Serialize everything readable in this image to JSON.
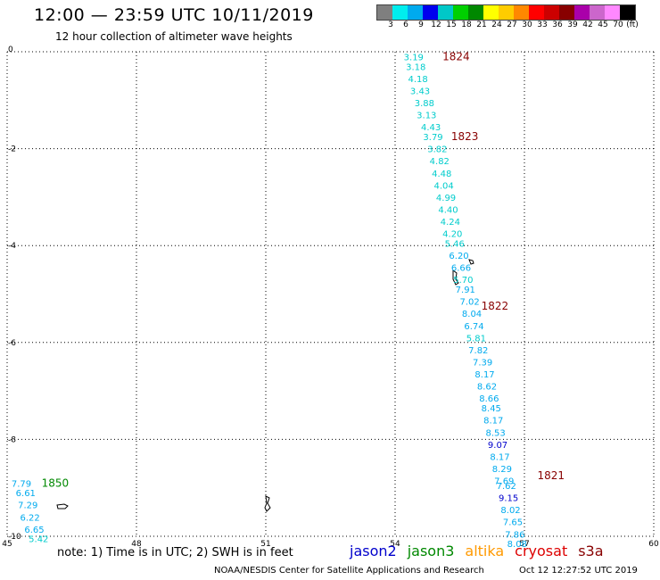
{
  "header": {
    "title": "12:00 — 23:59 UTC 10/11/2019",
    "subtitle": "12 hour collection of altimeter wave heights"
  },
  "legend": {
    "colors": [
      "#7f7f7f",
      "#00eeee",
      "#00aaee",
      "#0000ee",
      "#00c8c8",
      "#00d000",
      "#008800",
      "#ffff00",
      "#ffcc00",
      "#ff8800",
      "#ff0000",
      "#cc0000",
      "#880000",
      "#aa00aa",
      "#cc66cc",
      "#ff88ff",
      "#000000"
    ],
    "labels": [
      "3",
      "6",
      "9",
      "12",
      "15",
      "18",
      "21",
      "24",
      "27",
      "30",
      "33",
      "36",
      "39",
      "42",
      "45",
      "70",
      "(ft)"
    ]
  },
  "note": "note: 1) Time is in UTC; 2) SWH is in feet",
  "missions": [
    {
      "name": "jason2",
      "color": "#0000cc"
    },
    {
      "name": "jason3",
      "color": "#008800"
    },
    {
      "name": "altika",
      "color": "#ff9900"
    },
    {
      "name": "cryosat",
      "color": "#dd0000"
    },
    {
      "name": "s3a",
      "color": "#880000"
    }
  ],
  "footer": {
    "credit": "NOAA/NESDIS Center for Satellite Applications and Research",
    "timestamp": "Oct 12 12:27:52 UTC 2019"
  },
  "chart_data": {
    "type": "scatter",
    "xlim": [
      45,
      60
    ],
    "ylim": [
      -10,
      0
    ],
    "x_ticks": [
      "45",
      "48",
      "51",
      "54",
      "57",
      "60"
    ],
    "y_ticks": [
      "0",
      "-2",
      "-4",
      "-6",
      "-8",
      "-10"
    ],
    "grid": true,
    "time_labels": [
      {
        "label": "1824",
        "x": 55.1,
        "y": -0.1,
        "color": "#880000"
      },
      {
        "label": "1823",
        "x": 55.3,
        "y": -1.75,
        "color": "#880000"
      },
      {
        "label": "1822",
        "x": 56.0,
        "y": -5.25,
        "color": "#880000"
      },
      {
        "label": "1821",
        "x": 57.3,
        "y": -8.75,
        "color": "#880000"
      },
      {
        "label": "1850",
        "x": 45.8,
        "y": -8.9,
        "color": "#008800"
      }
    ],
    "points": [
      {
        "v": "3.19",
        "x": 54.2,
        "y": -0.1,
        "color": "#00cccc"
      },
      {
        "v": "3.18",
        "x": 54.25,
        "y": -0.3,
        "color": "#00cccc"
      },
      {
        "v": "4.18",
        "x": 54.3,
        "y": -0.55,
        "color": "#00cccc"
      },
      {
        "v": "3.43",
        "x": 54.35,
        "y": -0.8,
        "color": "#00cccc"
      },
      {
        "v": "3.88",
        "x": 54.45,
        "y": -1.05,
        "color": "#00cccc"
      },
      {
        "v": "3.13",
        "x": 54.5,
        "y": -1.3,
        "color": "#00cccc"
      },
      {
        "v": "4.43",
        "x": 54.6,
        "y": -1.55,
        "color": "#00cccc"
      },
      {
        "v": "3.79",
        "x": 54.65,
        "y": -1.75,
        "color": "#00cccc"
      },
      {
        "v": "3.82",
        "x": 54.75,
        "y": -2.0,
        "color": "#00cccc"
      },
      {
        "v": "4.82",
        "x": 54.8,
        "y": -2.25,
        "color": "#00cccc"
      },
      {
        "v": "4.48",
        "x": 54.85,
        "y": -2.5,
        "color": "#00cccc"
      },
      {
        "v": "4.04",
        "x": 54.9,
        "y": -2.75,
        "color": "#00cccc"
      },
      {
        "v": "4.99",
        "x": 54.95,
        "y": -3.0,
        "color": "#00cccc"
      },
      {
        "v": "4.40",
        "x": 55.0,
        "y": -3.25,
        "color": "#00cccc"
      },
      {
        "v": "4.24",
        "x": 55.05,
        "y": -3.5,
        "color": "#00cccc"
      },
      {
        "v": "4.20",
        "x": 55.1,
        "y": -3.75,
        "color": "#00cccc"
      },
      {
        "v": "5.46",
        "x": 55.15,
        "y": -3.95,
        "color": "#00cccc"
      },
      {
        "v": "6.20",
        "x": 55.25,
        "y": -4.2,
        "color": "#00aaee"
      },
      {
        "v": "6.66",
        "x": 55.3,
        "y": -4.45,
        "color": "#00aaee"
      },
      {
        "v": "5.70",
        "x": 55.35,
        "y": -4.7,
        "color": "#00cccc"
      },
      {
        "v": "7.91",
        "x": 55.4,
        "y": -4.9,
        "color": "#00aaee"
      },
      {
        "v": "7.02",
        "x": 55.5,
        "y": -5.15,
        "color": "#00aaee"
      },
      {
        "v": "8.04",
        "x": 55.55,
        "y": -5.4,
        "color": "#00aaee"
      },
      {
        "v": "6.74",
        "x": 55.6,
        "y": -5.65,
        "color": "#00aaee"
      },
      {
        "v": "5.81",
        "x": 55.65,
        "y": -5.9,
        "color": "#00cccc"
      },
      {
        "v": "7.82",
        "x": 55.7,
        "y": -6.15,
        "color": "#00aaee"
      },
      {
        "v": "7.39",
        "x": 55.8,
        "y": -6.4,
        "color": "#00aaee"
      },
      {
        "v": "8.17",
        "x": 55.85,
        "y": -6.65,
        "color": "#00aaee"
      },
      {
        "v": "8.62",
        "x": 55.9,
        "y": -6.9,
        "color": "#00aaee"
      },
      {
        "v": "8.66",
        "x": 55.95,
        "y": -7.15,
        "color": "#00aaee"
      },
      {
        "v": "8.45",
        "x": 56.0,
        "y": -7.35,
        "color": "#00aaee"
      },
      {
        "v": "8.17",
        "x": 56.05,
        "y": -7.6,
        "color": "#00aaee"
      },
      {
        "v": "8.53",
        "x": 56.1,
        "y": -7.85,
        "color": "#00aaee"
      },
      {
        "v": "9.07",
        "x": 56.15,
        "y": -8.1,
        "color": "#0000cc"
      },
      {
        "v": "8.17",
        "x": 56.2,
        "y": -8.35,
        "color": "#00aaee"
      },
      {
        "v": "8.29",
        "x": 56.25,
        "y": -8.6,
        "color": "#00aaee"
      },
      {
        "v": "7.69",
        "x": 56.3,
        "y": -8.85,
        "color": "#00aaee"
      },
      {
        "v": "7.62",
        "x": 56.35,
        "y": -8.95,
        "color": "#00aaee"
      },
      {
        "v": "9.15",
        "x": 56.4,
        "y": -9.2,
        "color": "#0000cc"
      },
      {
        "v": "8.02",
        "x": 56.45,
        "y": -9.45,
        "color": "#00aaee"
      },
      {
        "v": "7.65",
        "x": 56.5,
        "y": -9.7,
        "color": "#00aaee"
      },
      {
        "v": "7.86",
        "x": 56.55,
        "y": -9.95,
        "color": "#00aaee"
      },
      {
        "v": "8.08",
        "x": 56.6,
        "y": -10.15,
        "color": "#00aaee"
      },
      {
        "v": "7.79",
        "x": 45.1,
        "y": -8.9,
        "color": "#00aaee"
      },
      {
        "v": "6.61",
        "x": 45.2,
        "y": -9.1,
        "color": "#00aaee"
      },
      {
        "v": "7.29",
        "x": 45.25,
        "y": -9.35,
        "color": "#00aaee"
      },
      {
        "v": "6.22",
        "x": 45.3,
        "y": -9.6,
        "color": "#00aaee"
      },
      {
        "v": "6.65",
        "x": 45.4,
        "y": -9.85,
        "color": "#00aaee"
      },
      {
        "v": "5.42",
        "x": 45.5,
        "y": -10.05,
        "color": "#00cccc"
      }
    ]
  }
}
